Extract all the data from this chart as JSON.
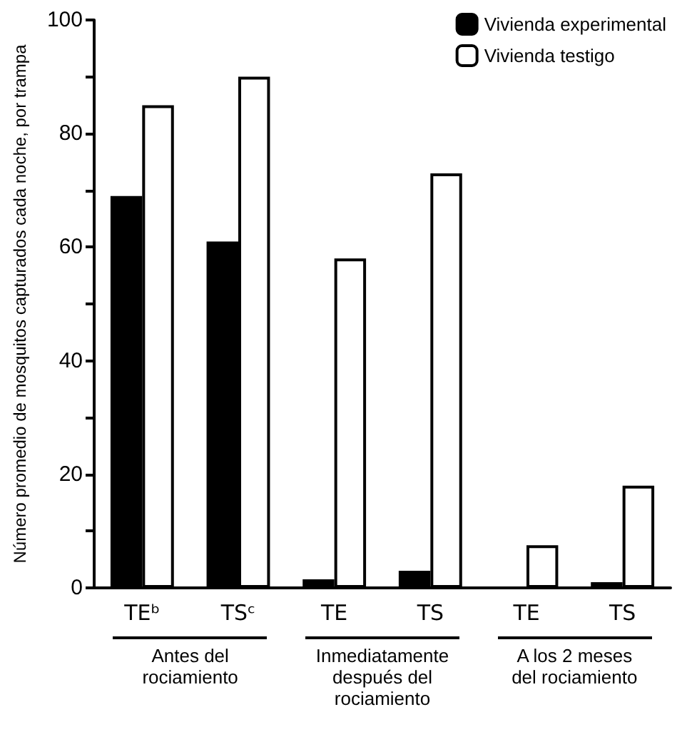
{
  "chart_data": {
    "type": "bar",
    "ylabel": "Número promedio de mosquitos capturados cada noche, por trampa",
    "categories": [
      "TEᵇ",
      "TSᶜ",
      "TE",
      "TS",
      "TE",
      "TS"
    ],
    "series": [
      {
        "name": "Vivienda experimental",
        "color": "#000000",
        "values": [
          69,
          61,
          1.5,
          3,
          0,
          1
        ]
      },
      {
        "name": "Vivienda testigo",
        "color": "#ffffff",
        "values": [
          85,
          90,
          58,
          73,
          7.5,
          18
        ]
      }
    ],
    "ylim": [
      0,
      100
    ],
    "yticks": [
      0,
      {
        "value": 10,
        "label": null
      },
      20,
      {
        "value": 30,
        "label": null
      },
      40,
      {
        "value": 50,
        "label": null
      },
      60,
      {
        "value": 70,
        "label": null
      },
      80,
      {
        "value": 90,
        "label": null
      },
      100
    ],
    "annotations": [
      "Antes del\nrociamiento",
      "Inmediatamente\ndespués del\nrociamiento",
      "A los 2 meses\ndel rociamiento"
    ],
    "grid": false,
    "legend": "top right"
  }
}
